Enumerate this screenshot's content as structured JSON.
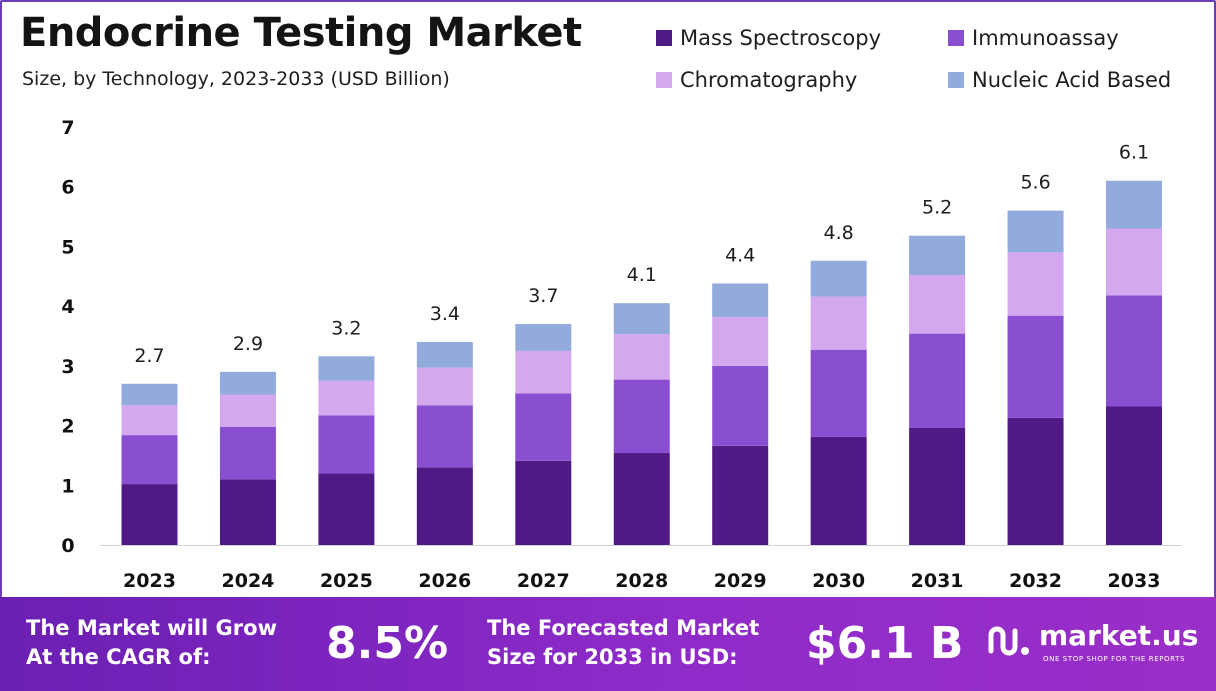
{
  "header": {
    "title": "Endocrine Testing Market",
    "subtitle": "Size, by Technology, 2023-2033 (USD Billion)"
  },
  "legend": [
    {
      "label": "Mass Spectroscopy",
      "color": "#4f1a86"
    },
    {
      "label": "Immunoassay",
      "color": "#8a4fd1"
    },
    {
      "label": "Chromatography",
      "color": "#d3a8ee"
    },
    {
      "label": "Nucleic Acid Based",
      "color": "#93aadd"
    }
  ],
  "chart_data": {
    "type": "bar",
    "stacked": true,
    "categories": [
      "2023",
      "2024",
      "2025",
      "2026",
      "2027",
      "2028",
      "2029",
      "2030",
      "2031",
      "2032",
      "2033"
    ],
    "series": [
      {
        "name": "Mass Spectroscopy",
        "color": "#4f1a86",
        "values": [
          1.02,
          1.1,
          1.2,
          1.3,
          1.41,
          1.54,
          1.66,
          1.81,
          1.96,
          2.13,
          2.32
        ]
      },
      {
        "name": "Immunoassay",
        "color": "#8a4fd1",
        "values": [
          0.82,
          0.88,
          0.97,
          1.04,
          1.13,
          1.23,
          1.34,
          1.46,
          1.58,
          1.71,
          1.86
        ]
      },
      {
        "name": "Chromatography",
        "color": "#d3a8ee",
        "values": [
          0.5,
          0.54,
          0.58,
          0.63,
          0.71,
          0.76,
          0.82,
          0.89,
          0.98,
          1.06,
          1.12
        ]
      },
      {
        "name": "Nucleic Acid Based",
        "color": "#93aadd",
        "values": [
          0.36,
          0.38,
          0.41,
          0.43,
          0.45,
          0.52,
          0.56,
          0.6,
          0.66,
          0.7,
          0.8
        ]
      }
    ],
    "totals": [
      "2.7",
      "2.9",
      "3.2",
      "3.4",
      "3.7",
      "4.1",
      "4.4",
      "4.8",
      "5.2",
      "5.6",
      "6.1"
    ],
    "yticks": [
      "0",
      "1",
      "2",
      "3",
      "4",
      "5",
      "6",
      "7"
    ],
    "ylim": [
      0,
      7
    ],
    "grid": false,
    "legend_position": "top-right"
  },
  "footer": {
    "cagr_label_1": "The Market will Grow",
    "cagr_label_2": "At the CAGR of:",
    "cagr_value": "8.5%",
    "forecast_label_1": "The Forecasted Market",
    "forecast_label_2": "Size for 2033 in USD:",
    "forecast_value": "$6.1 B",
    "logo_text": "market.us",
    "logo_tagline": "ONE STOP SHOP FOR THE REPORTS"
  }
}
